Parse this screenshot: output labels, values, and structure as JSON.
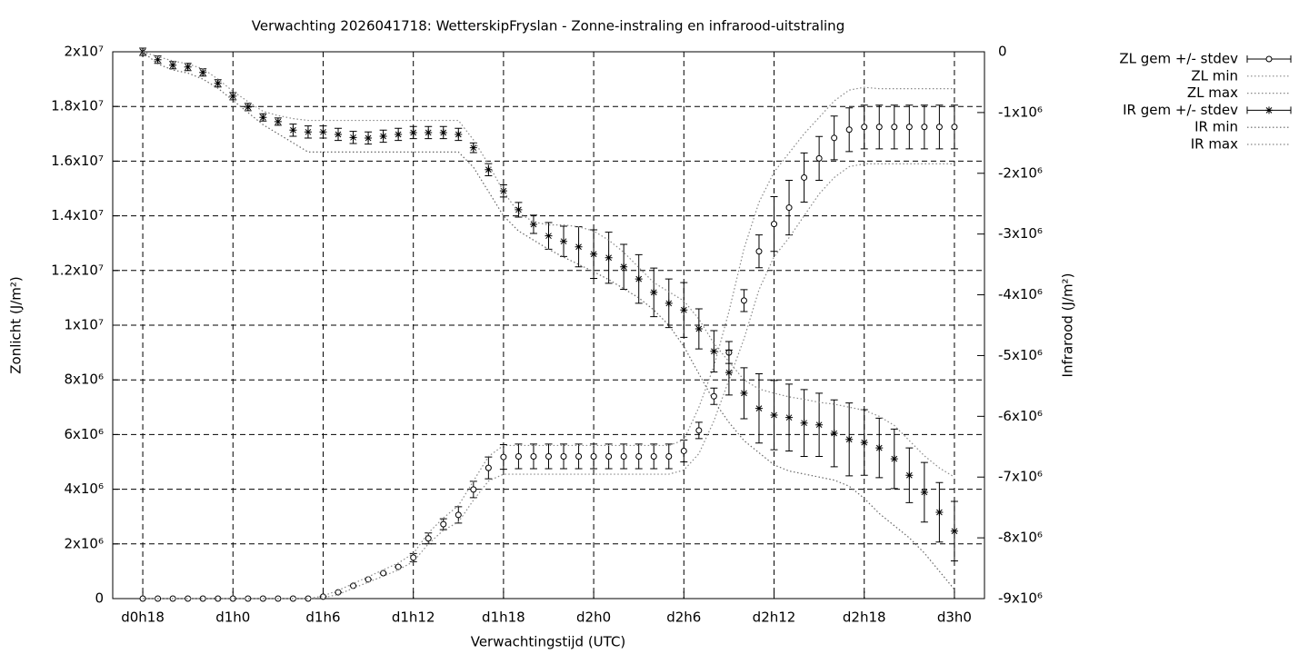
{
  "chart_data": {
    "type": "errorbar-line",
    "title": "Verwachting 2026041718: WetterskipFryslan - Zonne-instraling en infrarood-uitstraling",
    "x_label": "Verwachtingstijd (UTC)",
    "y_label": "Zonlicht (J/m²)",
    "y2_label": "Infrarood (J/m²)",
    "x": [
      18,
      19,
      20,
      21,
      22,
      23,
      24,
      25,
      26,
      27,
      28,
      29,
      30,
      31,
      32,
      33,
      34,
      35,
      36,
      37,
      38,
      39,
      40,
      41,
      42,
      43,
      44,
      45,
      46,
      47,
      48,
      49,
      50,
      51,
      52,
      53,
      54,
      55,
      56,
      57,
      58,
      59,
      60,
      61,
      62,
      63,
      64,
      65,
      66,
      67,
      68,
      69,
      70,
      71,
      72
    ],
    "xlim": [
      16,
      74
    ],
    "xticks": [
      {
        "value": 18,
        "label": "d0h18"
      },
      {
        "value": 24,
        "label": "d1h0"
      },
      {
        "value": 30,
        "label": "d1h6"
      },
      {
        "value": 36,
        "label": "d1h12"
      },
      {
        "value": 42,
        "label": "d1h18"
      },
      {
        "value": 48,
        "label": "d2h0"
      },
      {
        "value": 54,
        "label": "d2h6"
      },
      {
        "value": 60,
        "label": "d2h12"
      },
      {
        "value": 66,
        "label": "d2h18"
      },
      {
        "value": 72,
        "label": "d3h0"
      }
    ],
    "ylim": [
      0,
      20000000.0
    ],
    "yticks": [
      0,
      {
        "value": 2000000.0,
        "label": "2x10⁶"
      },
      {
        "value": 4000000.0,
        "label": "4x10⁶"
      },
      {
        "value": 6000000.0,
        "label": "6x10⁶"
      },
      {
        "value": 8000000.0,
        "label": "8x10⁶"
      },
      {
        "value": 10000000.0,
        "label": "1x10⁷"
      },
      {
        "value": 12000000.0,
        "label": "1.2x10⁷"
      },
      {
        "value": 14000000.0,
        "label": "1.4x10⁷"
      },
      {
        "value": 16000000.0,
        "label": "1.6x10⁷"
      },
      {
        "value": 18000000.0,
        "label": "1.8x10⁷"
      },
      {
        "value": 20000000.0,
        "label": "2x10⁷"
      }
    ],
    "y2lim": [
      -9000000.0,
      0
    ],
    "y2ticks": [
      0,
      {
        "value": -1000000.0,
        "label": "-1x10⁶"
      },
      {
        "value": -2000000.0,
        "label": "-2x10⁶"
      },
      {
        "value": -3000000.0,
        "label": "-3x10⁶"
      },
      {
        "value": -4000000.0,
        "label": "-4x10⁶"
      },
      {
        "value": -5000000.0,
        "label": "-5x10⁶"
      },
      {
        "value": -6000000.0,
        "label": "-6x10⁶"
      },
      {
        "value": -7000000.0,
        "label": "-7x10⁶"
      },
      {
        "value": -8000000.0,
        "label": "-8x10⁶"
      },
      {
        "value": -9000000.0,
        "label": "-9x10⁶"
      }
    ],
    "grid": true,
    "legend": "top-right",
    "series": [
      {
        "name": "ZL gem +/- stdev",
        "color": "#000000",
        "style": "errorbars",
        "marker": "circle",
        "axis": "y",
        "values": [
          0,
          0,
          0,
          0,
          0,
          0,
          0,
          0,
          0,
          0,
          0,
          0,
          70000.0,
          230000.0,
          470000.0,
          700000.0,
          930000.0,
          1160000.0,
          1500000.0,
          2200000.0,
          2720000.0,
          3060000.0,
          3990000.0,
          4780000.0,
          5180000.0,
          5200000.0,
          5200000.0,
          5200000.0,
          5200000.0,
          5200000.0,
          5200000.0,
          5200000.0,
          5200000.0,
          5200000.0,
          5200000.0,
          5200000.0,
          5400000.0,
          6150000.0,
          7400000.0,
          9000000.0,
          10900000.0,
          12700000.0,
          13700000.0,
          14300000.0,
          15400000.0,
          16100000.0,
          16850000.0,
          17150000.0,
          17250000.0,
          17250000.0,
          17250000.0,
          17250000.0,
          17250000.0,
          17250000.0,
          17250000.0
        ],
        "errors": [
          0,
          0,
          0,
          0,
          0,
          0,
          0,
          0,
          0,
          0,
          0,
          0,
          0,
          0,
          0,
          0,
          0,
          0,
          150000.0,
          200000.0,
          200000.0,
          300000.0,
          300000.0,
          400000.0,
          450000.0,
          450000.0,
          450000.0,
          450000.0,
          450000.0,
          450000.0,
          450000.0,
          450000.0,
          450000.0,
          450000.0,
          450000.0,
          450000.0,
          400000.0,
          300000.0,
          300000.0,
          400000.0,
          400000.0,
          600000.0,
          1000000.0,
          1000000.0,
          900000.0,
          800000.0,
          800000.0,
          800000.0,
          800000.0,
          800000.0,
          800000.0,
          800000.0,
          800000.0,
          800000.0,
          800000.0
        ]
      },
      {
        "name": "ZL min",
        "color": "#888888",
        "style": "dotted",
        "axis": "y",
        "values": [
          0,
          0,
          0,
          0,
          0,
          0,
          0,
          0,
          0,
          0,
          0,
          0,
          30000.0,
          150000.0,
          380000.0,
          600000.0,
          820000.0,
          1050000.0,
          1350000.0,
          2000000.0,
          2500000.0,
          2800000.0,
          3600000.0,
          4300000.0,
          4550000.0,
          4550000.0,
          4550000.0,
          4550000.0,
          4550000.0,
          4550000.0,
          4550000.0,
          4550000.0,
          4550000.0,
          4550000.0,
          4550000.0,
          4550000.0,
          4700000.0,
          5300000.0,
          6500000.0,
          8000000.0,
          9500000.0,
          11300000.0,
          12500000.0,
          13200000.0,
          14000000.0,
          14800000.0,
          15400000.0,
          15800000.0,
          15900000.0,
          15900000.0,
          15900000.0,
          15900000.0,
          15900000.0,
          15900000.0,
          15900000.0
        ]
      },
      {
        "name": "ZL max",
        "color": "#888888",
        "style": "dotted",
        "axis": "y",
        "values": [
          0,
          0,
          0,
          0,
          0,
          0,
          0,
          0,
          0,
          0,
          0,
          0,
          100000.0,
          300000.0,
          550000.0,
          800000.0,
          1050000.0,
          1300000.0,
          1650000.0,
          2400000.0,
          2950000.0,
          3400000.0,
          4300000.0,
          5200000.0,
          5600000.0,
          5600000.0,
          5600000.0,
          5600000.0,
          5600000.0,
          5600000.0,
          5600000.0,
          5600000.0,
          5600000.0,
          5600000.0,
          5600000.0,
          5600000.0,
          5800000.0,
          7000000.0,
          8500000.0,
          10500000.0,
          12800000.0,
          14500000.0,
          15600000.0,
          16300000.0,
          17000000.0,
          17600000.0,
          18200000.0,
          18600000.0,
          18700000.0,
          18650000.0,
          18650000.0,
          18650000.0,
          18650000.0,
          18650000.0,
          18650000.0
        ]
      },
      {
        "name": "IR gem +/- stdev",
        "color": "#000000",
        "style": "errorbars",
        "marker": "star",
        "axis": "y2",
        "values": [
          0,
          -130000.0,
          -220000.0,
          -250000.0,
          -340000.0,
          -520000.0,
          -730000.0,
          -910000.0,
          -1080000.0,
          -1150000.0,
          -1290000.0,
          -1320000.0,
          -1320000.0,
          -1360000.0,
          -1410000.0,
          -1420000.0,
          -1390000.0,
          -1360000.0,
          -1330000.0,
          -1330000.0,
          -1330000.0,
          -1360000.0,
          -1580000.0,
          -1940000.0,
          -2290000.0,
          -2600000.0,
          -2840000.0,
          -3030000.0,
          -3120000.0,
          -3210000.0,
          -3330000.0,
          -3390000.0,
          -3540000.0,
          -3740000.0,
          -3960000.0,
          -4140000.0,
          -4250000.0,
          -4560000.0,
          -4930000.0,
          -5280000.0,
          -5620000.0,
          -5870000.0,
          -5980000.0,
          -6020000.0,
          -6110000.0,
          -6140000.0,
          -6280000.0,
          -6380000.0,
          -6430000.0,
          -6520000.0,
          -6700000.0,
          -6970000.0,
          -7250000.0,
          -7580000.0,
          -7890000.0
        ],
        "errors": [
          60000.0,
          60000.0,
          60000.0,
          60000.0,
          60000.0,
          60000.0,
          60000.0,
          60000.0,
          60000.0,
          60000.0,
          100000.0,
          100000.0,
          100000.0,
          100000.0,
          100000.0,
          100000.0,
          100000.0,
          100000.0,
          100000.0,
          100000.0,
          100000.0,
          100000.0,
          80000.0,
          100000.0,
          100000.0,
          120000.0,
          150000.0,
          220000.0,
          250000.0,
          330000.0,
          400000.0,
          420000.0,
          370000.0,
          400000.0,
          400000.0,
          400000.0,
          450000.0,
          330000.0,
          340000.0,
          370000.0,
          420000.0,
          570000.0,
          570000.0,
          550000.0,
          550000.0,
          520000.0,
          550000.0,
          600000.0,
          540000.0,
          490000.0,
          490000.0,
          450000.0,
          490000.0,
          490000.0,
          490000.0
        ]
      },
      {
        "name": "IR min",
        "color": "#666666",
        "style": "dotted",
        "axis": "y2",
        "values": [
          0,
          -200000.0,
          -300000.0,
          -350000.0,
          -450000.0,
          -600000.0,
          -800000.0,
          -1000000.0,
          -1200000.0,
          -1350000.0,
          -1500000.0,
          -1650000.0,
          -1650000.0,
          -1650000.0,
          -1650000.0,
          -1650000.0,
          -1650000.0,
          -1650000.0,
          -1650000.0,
          -1650000.0,
          -1650000.0,
          -1650000.0,
          -1900000.0,
          -2300000.0,
          -2700000.0,
          -2950000.0,
          -3100000.0,
          -3250000.0,
          -3380000.0,
          -3500000.0,
          -3620000.0,
          -3750000.0,
          -3900000.0,
          -4050000.0,
          -4250000.0,
          -4500000.0,
          -4850000.0,
          -5300000.0,
          -5750000.0,
          -6100000.0,
          -6400000.0,
          -6600000.0,
          -6800000.0,
          -6900000.0,
          -6950000.0,
          -7000000.0,
          -7050000.0,
          -7150000.0,
          -7350000.0,
          -7600000.0,
          -7800000.0,
          -8000000.0,
          -8250000.0,
          -8550000.0,
          -8850000.0
        ]
      },
      {
        "name": "IR max",
        "color": "#888888",
        "style": "dotted",
        "axis": "y2",
        "values": [
          0,
          -80000.0,
          -150000.0,
          -200000.0,
          -280000.0,
          -450000.0,
          -650000.0,
          -820000.0,
          -980000.0,
          -1050000.0,
          -1100000.0,
          -1130000.0,
          -1130000.0,
          -1130000.0,
          -1130000.0,
          -1130000.0,
          -1130000.0,
          -1130000.0,
          -1130000.0,
          -1130000.0,
          -1130000.0,
          -1130000.0,
          -1450000.0,
          -1850000.0,
          -2300000.0,
          -2650000.0,
          -2800000.0,
          -2850000.0,
          -2850000.0,
          -2880000.0,
          -2950000.0,
          -3100000.0,
          -3300000.0,
          -3550000.0,
          -3800000.0,
          -3950000.0,
          -4100000.0,
          -4400000.0,
          -4800000.0,
          -5100000.0,
          -5400000.0,
          -5550000.0,
          -5620000.0,
          -5680000.0,
          -5720000.0,
          -5770000.0,
          -5800000.0,
          -5850000.0,
          -5900000.0,
          -6000000.0,
          -6150000.0,
          -6400000.0,
          -6650000.0,
          -6850000.0,
          -7000000.0
        ]
      }
    ]
  }
}
